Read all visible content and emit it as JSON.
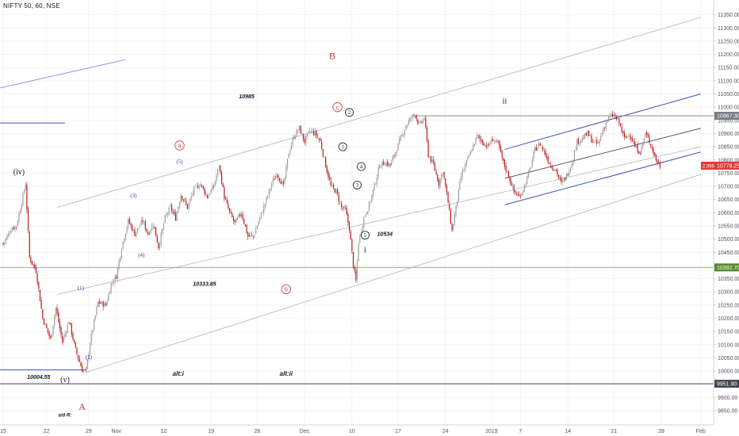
{
  "header": {
    "symbol_title": "NIFTY 50, 60, NSE"
  },
  "colors": {
    "up": "#9e9e9e",
    "down": "#b71c1c",
    "channel": "#b2b5be",
    "blue_line": "#3f51b5",
    "green_line": "#8bc34a",
    "red_label": "#c62828",
    "blue_label": "#303f9f",
    "grid": "#eceff1"
  },
  "chart_data": {
    "type": "candlestick",
    "title": "NIFTY 50, 60, NSE",
    "xlabel": "",
    "ylabel": "",
    "ylim": [
      9820,
      11370
    ],
    "y_ticks": [
      9850,
      9900,
      9950,
      10000,
      10050,
      10100,
      10150,
      10200,
      10250,
      10300,
      10350,
      10400,
      10450,
      10500,
      10550,
      10600,
      10650,
      10700,
      10750,
      10800,
      10850,
      10900,
      10950,
      11000,
      11050,
      11100,
      11150,
      11200,
      11250,
      11300,
      11350
    ],
    "y_tick_labels": [
      "9850.00",
      "9900.00",
      "9950.00",
      "10000.00",
      "10050.00",
      "10100.00",
      "10150.00",
      "10200.00",
      "10250.00",
      "10300.00",
      "10350.00",
      "10400.00",
      "10450.00",
      "10500.00",
      "10550.00",
      "10600.00",
      "10650.00",
      "10700.00",
      "10750.00",
      "10800.00",
      "10850.00",
      "10900.00",
      "10950.00",
      "11000.00",
      "11050.00",
      "11100.00",
      "11150.00",
      "11200.00",
      "11250.00",
      "11300.00",
      "11350.00"
    ],
    "x_ticks": [
      {
        "label": "15",
        "bar": 0
      },
      {
        "label": "22",
        "bar": 33
      },
      {
        "label": "29",
        "bar": 65
      },
      {
        "label": "Nov",
        "bar": 86
      },
      {
        "label": "12",
        "bar": 122
      },
      {
        "label": "19",
        "bar": 158
      },
      {
        "label": "26",
        "bar": 193
      },
      {
        "label": "Dec",
        "bar": 229
      },
      {
        "label": "10",
        "bar": 265
      },
      {
        "label": "17",
        "bar": 300
      },
      {
        "label": "24",
        "bar": 336
      },
      {
        "label": "2019",
        "bar": 371
      },
      {
        "label": "7",
        "bar": 393
      },
      {
        "label": "14",
        "bar": 429
      },
      {
        "label": "21",
        "bar": 464
      },
      {
        "label": "28",
        "bar": 500
      },
      {
        "label": "Feb",
        "bar": 530
      }
    ],
    "price_badges": [
      {
        "price": 10967.3,
        "label": "10967.30",
        "color": "#787b86"
      },
      {
        "price": 10778.25,
        "label": "10778.25",
        "color": "#e53935",
        "extra": "2,995"
      },
      {
        "price": 10392.7,
        "label": "10392.70",
        "color": "#558b2f"
      },
      {
        "price": 9951.9,
        "label": "9951.90",
        "color": "#434651"
      }
    ],
    "keypoints": [
      [
        0,
        10480
      ],
      [
        6,
        10540
      ],
      [
        10,
        10550
      ],
      [
        14,
        10640
      ],
      [
        17,
        10710
      ],
      [
        20,
        10430
      ],
      [
        25,
        10380
      ],
      [
        30,
        10200
      ],
      [
        36,
        10120
      ],
      [
        40,
        10240
      ],
      [
        45,
        10110
      ],
      [
        50,
        10190
      ],
      [
        55,
        10080
      ],
      [
        60,
        10005
      ],
      [
        63,
        10000
      ],
      [
        66,
        10110
      ],
      [
        72,
        10260
      ],
      [
        78,
        10250
      ],
      [
        82,
        10330
      ],
      [
        86,
        10360
      ],
      [
        90,
        10470
      ],
      [
        95,
        10570
      ],
      [
        100,
        10520
      ],
      [
        106,
        10570
      ],
      [
        110,
        10520
      ],
      [
        114,
        10560
      ],
      [
        118,
        10470
      ],
      [
        123,
        10580
      ],
      [
        127,
        10620
      ],
      [
        131,
        10580
      ],
      [
        135,
        10670
      ],
      [
        140,
        10620
      ],
      [
        145,
        10690
      ],
      [
        150,
        10710
      ],
      [
        155,
        10660
      ],
      [
        160,
        10700
      ],
      [
        164,
        10780
      ],
      [
        168,
        10660
      ],
      [
        172,
        10600
      ],
      [
        176,
        10560
      ],
      [
        181,
        10600
      ],
      [
        186,
        10510
      ],
      [
        190,
        10510
      ],
      [
        195,
        10580
      ],
      [
        200,
        10650
      ],
      [
        204,
        10710
      ],
      [
        208,
        10750
      ],
      [
        213,
        10700
      ],
      [
        217,
        10830
      ],
      [
        221,
        10890
      ],
      [
        225,
        10920
      ],
      [
        229,
        10870
      ],
      [
        233,
        10910
      ],
      [
        237,
        10900
      ],
      [
        241,
        10870
      ],
      [
        245,
        10780
      ],
      [
        249,
        10700
      ],
      [
        253,
        10680
      ],
      [
        257,
        10620
      ],
      [
        260,
        10610
      ],
      [
        263,
        10540
      ],
      [
        266,
        10400
      ],
      [
        268,
        10340
      ],
      [
        270,
        10490
      ],
      [
        274,
        10580
      ],
      [
        278,
        10630
      ],
      [
        282,
        10700
      ],
      [
        286,
        10780
      ],
      [
        290,
        10790
      ],
      [
        294,
        10780
      ],
      [
        298,
        10830
      ],
      [
        302,
        10880
      ],
      [
        306,
        10930
      ],
      [
        310,
        10960
      ],
      [
        313,
        10975
      ],
      [
        316,
        10930
      ],
      [
        320,
        10960
      ],
      [
        323,
        10820
      ],
      [
        327,
        10780
      ],
      [
        331,
        10710
      ],
      [
        334,
        10760
      ],
      [
        338,
        10640
      ],
      [
        341,
        10530
      ],
      [
        344,
        10620
      ],
      [
        348,
        10740
      ],
      [
        352,
        10790
      ],
      [
        356,
        10840
      ],
      [
        360,
        10890
      ],
      [
        364,
        10870
      ],
      [
        368,
        10850
      ],
      [
        372,
        10880
      ],
      [
        376,
        10860
      ],
      [
        380,
        10790
      ],
      [
        384,
        10740
      ],
      [
        388,
        10680
      ],
      [
        392,
        10660
      ],
      [
        396,
        10700
      ],
      [
        400,
        10760
      ],
      [
        404,
        10840
      ],
      [
        408,
        10860
      ],
      [
        412,
        10820
      ],
      [
        416,
        10780
      ],
      [
        420,
        10760
      ],
      [
        424,
        10710
      ],
      [
        428,
        10740
      ],
      [
        432,
        10790
      ],
      [
        436,
        10870
      ],
      [
        440,
        10880
      ],
      [
        444,
        10900
      ],
      [
        448,
        10870
      ],
      [
        452,
        10860
      ],
      [
        456,
        10920
      ],
      [
        460,
        10960
      ],
      [
        464,
        10970
      ],
      [
        468,
        10940
      ],
      [
        472,
        10880
      ],
      [
        476,
        10900
      ],
      [
        480,
        10850
      ],
      [
        484,
        10830
      ],
      [
        488,
        10900
      ],
      [
        492,
        10860
      ],
      [
        496,
        10800
      ],
      [
        499,
        10778
      ]
    ],
    "channels": [
      {
        "from": [
          41,
          10620
        ],
        "to": [
          530,
          11340
        ],
        "color": "#b2b5be",
        "width": 0.8
      },
      {
        "from": [
          41,
          10290
        ],
        "to": [
          530,
          10850
        ],
        "color": "#b2b5be",
        "width": 0.8
      },
      {
        "from": [
          63,
          9995
        ],
        "to": [
          530,
          10745
        ],
        "color": "#b2b5be",
        "width": 0.8
      },
      {
        "from": [
          -5,
          11070
        ],
        "to": [
          93,
          11180
        ],
        "color": "#7e7ee0",
        "width": 0.8
      },
      {
        "from": [
          381,
          10840
        ],
        "to": [
          530,
          11050
        ],
        "color": "#3f51b5",
        "width": 1
      },
      {
        "from": [
          381,
          10630
        ],
        "to": [
          530,
          10830
        ],
        "color": "#3f51b5",
        "width": 1
      },
      {
        "from": [
          381,
          10730
        ],
        "to": [
          530,
          10920
        ],
        "color": "#434651",
        "width": 0.8
      }
    ],
    "hlines": [
      {
        "from_bar": -5,
        "to_bar": 47,
        "price": 10940,
        "color": "#3f51b5",
        "width": 1
      },
      {
        "from_bar": -5,
        "to_bar": 562,
        "price": 10392.7,
        "color": "#8bc34a",
        "width": 1
      },
      {
        "from_bar": -5,
        "to_bar": 562,
        "price": 9951.9,
        "color": "#434651",
        "width": 1
      },
      {
        "from_bar": -5,
        "to_bar": 63,
        "price": 10004.55,
        "color": "#3f51b5",
        "width": 1
      },
      {
        "from_bar": 313,
        "to_bar": 562,
        "price": 10967.3,
        "color": "#787b86",
        "width": 0.8
      }
    ],
    "annotations": [
      {
        "text": "B",
        "bar": 250,
        "price": 11195,
        "color": "#c62828",
        "size": 12,
        "style": "plain"
      },
      {
        "text": "A",
        "bar": 60,
        "price": 9865,
        "color": "#c62828",
        "size": 12,
        "style": "plain"
      },
      {
        "text": "(iv)",
        "bar": 12,
        "price": 10755,
        "color": "#131722",
        "size": 10,
        "style": "plain"
      },
      {
        "text": "(v)",
        "bar": 47,
        "price": 9968,
        "color": "#131722",
        "size": 10,
        "style": "plain"
      },
      {
        "text": "a",
        "bar": 134,
        "price": 10855,
        "color": "#c62828",
        "size": 8,
        "style": "circle"
      },
      {
        "text": "b",
        "bar": 215,
        "price": 10310,
        "color": "#c62828",
        "size": 8,
        "style": "circle"
      },
      {
        "text": "c",
        "bar": 254,
        "price": 11000,
        "color": "#c62828",
        "size": 8,
        "style": "circle"
      },
      {
        "text": "(5)",
        "bar": 134,
        "price": 10795,
        "color": "#303f9f",
        "size": 7,
        "style": "plain"
      },
      {
        "text": "(3)",
        "bar": 99,
        "price": 10665,
        "color": "#303f9f",
        "size": 7,
        "style": "plain"
      },
      {
        "text": "(4)",
        "bar": 105,
        "price": 10440,
        "color": "#303f9f",
        "size": 7,
        "style": "plain"
      },
      {
        "text": "(1)",
        "bar": 59,
        "price": 10315,
        "color": "#303f9f",
        "size": 7,
        "style": "plain"
      },
      {
        "text": "(2)",
        "bar": 65,
        "price": 10052,
        "color": "#303f9f",
        "size": 7,
        "style": "plain"
      },
      {
        "text": "2",
        "bar": 263,
        "price": 10980,
        "color": "#131722",
        "size": 7,
        "style": "circle"
      },
      {
        "text": "1",
        "bar": 258,
        "price": 10850,
        "color": "#131722",
        "size": 7,
        "style": "circle"
      },
      {
        "text": "4",
        "bar": 272,
        "price": 10775,
        "color": "#131722",
        "size": 7,
        "style": "circle"
      },
      {
        "text": "3",
        "bar": 269,
        "price": 10705,
        "color": "#131722",
        "size": 7,
        "style": "circle"
      },
      {
        "text": "5",
        "bar": 275,
        "price": 10515,
        "color": "#131722",
        "size": 7,
        "style": "circle"
      },
      {
        "text": "i",
        "bar": 275,
        "price": 10460,
        "color": "#131722",
        "size": 10,
        "style": "plain"
      },
      {
        "text": "ii",
        "bar": 381,
        "price": 11025,
        "color": "#131722",
        "size": 10,
        "style": "plain"
      },
      {
        "text": "10985",
        "bar": 185,
        "price": 11040,
        "color": "#131722",
        "size": 7,
        "style": "italic"
      },
      {
        "text": "10333.85",
        "bar": 153,
        "price": 10330,
        "color": "#131722",
        "size": 7,
        "style": "italic"
      },
      {
        "text": "10534",
        "bar": 290,
        "price": 10520,
        "color": "#131722",
        "size": 7,
        "style": "italic"
      },
      {
        "text": "10004.55",
        "bar": 27,
        "price": 9978,
        "color": "#131722",
        "size": 7,
        "style": "italic"
      },
      {
        "text": "alt:i",
        "bar": 133,
        "price": 9990,
        "color": "#131722",
        "size": 8,
        "style": "italic"
      },
      {
        "text": "alt:ii",
        "bar": 215,
        "price": 9990,
        "color": "#131722",
        "size": 8,
        "style": "italic"
      },
      {
        "text": "a/d·R:",
        "bar": 47,
        "price": 9834,
        "color": "#131722",
        "size": 6,
        "style": "italic"
      }
    ]
  }
}
